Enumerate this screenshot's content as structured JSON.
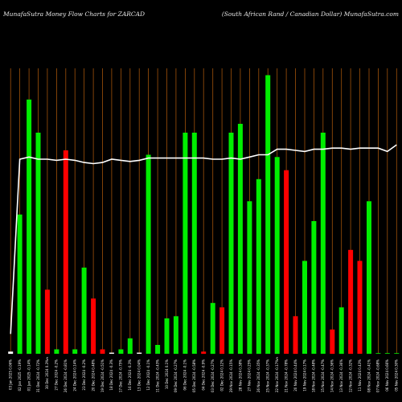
{
  "chart_data": {
    "type": "bar",
    "title_left": "MunafaSutra  Money Flow  Charts for ZARCAD",
    "title_right": "(South African  Rand / Canadian  Dollar) MunafaSutra.com",
    "x_labels": [
      "03 Jan 2025 0.06%",
      "02 Jan 2025 -0.19%",
      "01 Jan 2025 -0.14%",
      "31 Dec 2024 -0.72%",
      "30 Dec 2024 0.3%",
      "27 Dec 2024 -0.2%",
      "26 Dec 2024 -0.81%",
      "24 Dec 2024 0.14%",
      "23 Dec 2024 -0.2%",
      "20 Dec 2024 0.48%",
      "19 Dec 2024 -0.51%",
      "18 Dec 2024 -0.3%",
      "17 Dec 2024 -0.75%",
      "16 Dec 2024 -0.3%",
      "13 Dec 2024 0.04%",
      "12 Dec 2024 -0.1%",
      "11 Dec 2024 -0.43%",
      "10 Dec 2024 0.1%",
      "09 Dec 2024 -0.27%",
      "06 Dec 2024 -0.1%",
      "05 Dec 2024 -0.58%",
      "04 Dec 2024 -0.9%",
      "03 Dec 2024 -0.27%",
      "02 Dec 2024 0.12%",
      "29 Nov 2024 -0.15%",
      "28 Nov 2024 0.38%",
      "27 Nov 2024 0.25%",
      "26 Nov 2024 -0.35%",
      "25 Nov 2024 -0.37%",
      "22 Nov 2024 -0.17%",
      "21 Nov 2024 -0.78%",
      "20 Nov 2024 0.44%",
      "19 Nov 2024 0.17%",
      "18 Nov 2024 -0.48%",
      "15 Nov 2024 -0.47%",
      "14 Nov 2024 -0.36%",
      "13 Nov 2024 -0.36%",
      "12 Nov 2024 -0.32%",
      "11 Nov 2024 0.43%",
      "08 Nov 2024 -0.41%",
      "07 Nov 2024 -0.68%",
      "06 Nov 2024 0.66%",
      "05 Nov 2024 0.30%"
    ],
    "markers": [
      {
        "index": 4,
        "text": "c"
      },
      {
        "index": 29,
        "text": "c"
      }
    ],
    "series": [
      {
        "kind": "bars",
        "values": [
          1,
          63,
          115,
          100,
          29,
          2,
          92,
          2,
          39,
          25,
          2,
          0.5,
          2,
          7,
          0.5,
          90,
          4,
          16,
          17,
          100,
          100,
          1,
          23,
          21,
          100,
          104,
          69,
          79,
          126,
          89,
          83,
          17,
          42,
          60,
          100,
          11,
          21,
          47,
          42,
          69,
          0,
          0,
          0
        ],
        "colors": [
          "white",
          "green",
          "green",
          "green",
          "red",
          "green",
          "red",
          "green",
          "green",
          "red",
          "red",
          "white",
          "green",
          "green",
          "white",
          "green",
          "green",
          "green",
          "green",
          "green",
          "green",
          "red",
          "green",
          "red",
          "green",
          "green",
          "green",
          "green",
          "green",
          "green",
          "red",
          "red",
          "green",
          "green",
          "green",
          "red",
          "green",
          "red",
          "red",
          "green",
          "green",
          "green",
          "green"
        ]
      },
      {
        "kind": "line",
        "values": [
          9,
          88,
          89,
          88,
          88,
          87.5,
          88,
          87.5,
          86.5,
          86,
          86.5,
          88,
          87.5,
          87,
          87.5,
          88.5,
          88.5,
          88.5,
          88.5,
          88.5,
          88.5,
          88.5,
          88,
          88,
          88.5,
          88,
          89,
          90,
          90,
          92.5,
          92.5,
          92,
          91.5,
          92.5,
          92.5,
          93,
          93,
          92.5,
          93,
          93,
          93,
          91.5,
          94.5
        ]
      }
    ],
    "ylim": [
      0,
      160
    ],
    "grid": "vertical lines at each bar slot",
    "colors": {
      "green": "#00ee00",
      "red": "#ff0000",
      "white": "#ffffff",
      "grid": "#a0520a",
      "background": "#000000",
      "text": "#e8e8e8"
    }
  }
}
